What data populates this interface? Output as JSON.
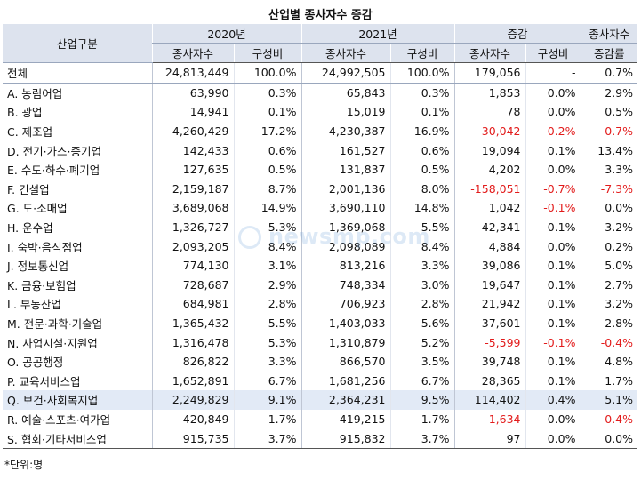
{
  "title": "산업별 종사자수 증감",
  "headers": {
    "category": "산업구분",
    "y2020": "2020년",
    "y2021": "2021년",
    "change": "증감",
    "rate_top": "종사자수",
    "workers": "종사자수",
    "share": "구성비",
    "rate_bottom": "증감률"
  },
  "rows": [
    {
      "label": "전체",
      "w2020": "24,813,449",
      "s2020": "100.0%",
      "w2021": "24,992,505",
      "s2021": "100.0%",
      "dw": "179,056",
      "ds": "-",
      "rate": "0.7%"
    },
    {
      "label": "A. 농림어업",
      "w2020": "63,990",
      "s2020": "0.3%",
      "w2021": "65,843",
      "s2021": "0.3%",
      "dw": "1,853",
      "ds": "0.0%",
      "rate": "2.9%"
    },
    {
      "label": "B. 광업",
      "w2020": "14,941",
      "s2020": "0.1%",
      "w2021": "15,019",
      "s2021": "0.1%",
      "dw": "78",
      "ds": "0.0%",
      "rate": "0.5%"
    },
    {
      "label": "C. 제조업",
      "w2020": "4,260,429",
      "s2020": "17.2%",
      "w2021": "4,230,387",
      "s2021": "16.9%",
      "dw": "-30,042",
      "ds": "-0.2%",
      "rate": "-0.7%"
    },
    {
      "label": "D. 전기·가스·증기업",
      "w2020": "142,433",
      "s2020": "0.6%",
      "w2021": "161,527",
      "s2021": "0.6%",
      "dw": "19,094",
      "ds": "0.1%",
      "rate": "13.4%"
    },
    {
      "label": "E. 수도·하수·폐기업",
      "w2020": "127,635",
      "s2020": "0.5%",
      "w2021": "131,837",
      "s2021": "0.5%",
      "dw": "4,202",
      "ds": "0.0%",
      "rate": "3.3%"
    },
    {
      "label": "F. 건설업",
      "w2020": "2,159,187",
      "s2020": "8.7%",
      "w2021": "2,001,136",
      "s2021": "8.0%",
      "dw": "-158,051",
      "ds": "-0.7%",
      "rate": "-7.3%"
    },
    {
      "label": "G. 도·소매업",
      "w2020": "3,689,068",
      "s2020": "14.9%",
      "w2021": "3,690,110",
      "s2021": "14.8%",
      "dw": "1,042",
      "ds": "-0.1%",
      "rate": "0.0%"
    },
    {
      "label": "H. 운수업",
      "w2020": "1,326,727",
      "s2020": "5.3%",
      "w2021": "1,369,068",
      "s2021": "5.5%",
      "dw": "42,341",
      "ds": "0.1%",
      "rate": "3.2%"
    },
    {
      "label": "I. 숙박·음식점업",
      "w2020": "2,093,205",
      "s2020": "8.4%",
      "w2021": "2,098,089",
      "s2021": "8.4%",
      "dw": "4,884",
      "ds": "0.0%",
      "rate": "0.2%"
    },
    {
      "label": "J. 정보통신업",
      "w2020": "774,130",
      "s2020": "3.1%",
      "w2021": "813,216",
      "s2021": "3.3%",
      "dw": "39,086",
      "ds": "0.1%",
      "rate": "5.0%"
    },
    {
      "label": "K. 금융·보험업",
      "w2020": "728,687",
      "s2020": "2.9%",
      "w2021": "748,334",
      "s2021": "3.0%",
      "dw": "19,647",
      "ds": "0.1%",
      "rate": "2.7%"
    },
    {
      "label": "L. 부동산업",
      "w2020": "684,981",
      "s2020": "2.8%",
      "w2021": "706,923",
      "s2021": "2.8%",
      "dw": "21,942",
      "ds": "0.1%",
      "rate": "3.2%"
    },
    {
      "label": "M. 전문·과학·기술업",
      "w2020": "1,365,432",
      "s2020": "5.5%",
      "w2021": "1,403,033",
      "s2021": "5.6%",
      "dw": "37,601",
      "ds": "0.1%",
      "rate": "2.8%"
    },
    {
      "label": "N. 사업시설·지원업",
      "w2020": "1,316,478",
      "s2020": "5.3%",
      "w2021": "1,310,879",
      "s2021": "5.2%",
      "dw": "-5,599",
      "ds": "-0.1%",
      "rate": "-0.4%"
    },
    {
      "label": "O. 공공행정",
      "w2020": "826,822",
      "s2020": "3.3%",
      "w2021": "866,570",
      "s2021": "3.5%",
      "dw": "39,748",
      "ds": "0.1%",
      "rate": "4.8%"
    },
    {
      "label": "P. 교육서비스업",
      "w2020": "1,652,891",
      "s2020": "6.7%",
      "w2021": "1,681,256",
      "s2021": "6.7%",
      "dw": "28,365",
      "ds": "0.1%",
      "rate": "1.7%"
    },
    {
      "label": "Q. 보건·사회복지업",
      "w2020": "2,249,829",
      "s2020": "9.1%",
      "w2021": "2,364,231",
      "s2021": "9.5%",
      "dw": "114,402",
      "ds": "0.4%",
      "rate": "5.1%"
    },
    {
      "label": "R. 예술·스포츠·여가업",
      "w2020": "420,849",
      "s2020": "1.7%",
      "w2021": "419,215",
      "s2021": "1.7%",
      "dw": "-1,634",
      "ds": "0.0%",
      "rate": "-0.4%"
    },
    {
      "label": "S. 협회·기타서비스업",
      "w2020": "915,735",
      "s2020": "3.7%",
      "w2021": "915,832",
      "s2021": "3.7%",
      "dw": "97",
      "ds": "0.0%",
      "rate": "0.0%"
    }
  ],
  "highlight_row_label": "Q. 보건·사회복지업",
  "negative_color": "#e21b1b",
  "header_bg": "#dde3ee",
  "highlight_bg": "#e2eaf6",
  "watermark": "newsmp.com",
  "note": "*단위:명"
}
